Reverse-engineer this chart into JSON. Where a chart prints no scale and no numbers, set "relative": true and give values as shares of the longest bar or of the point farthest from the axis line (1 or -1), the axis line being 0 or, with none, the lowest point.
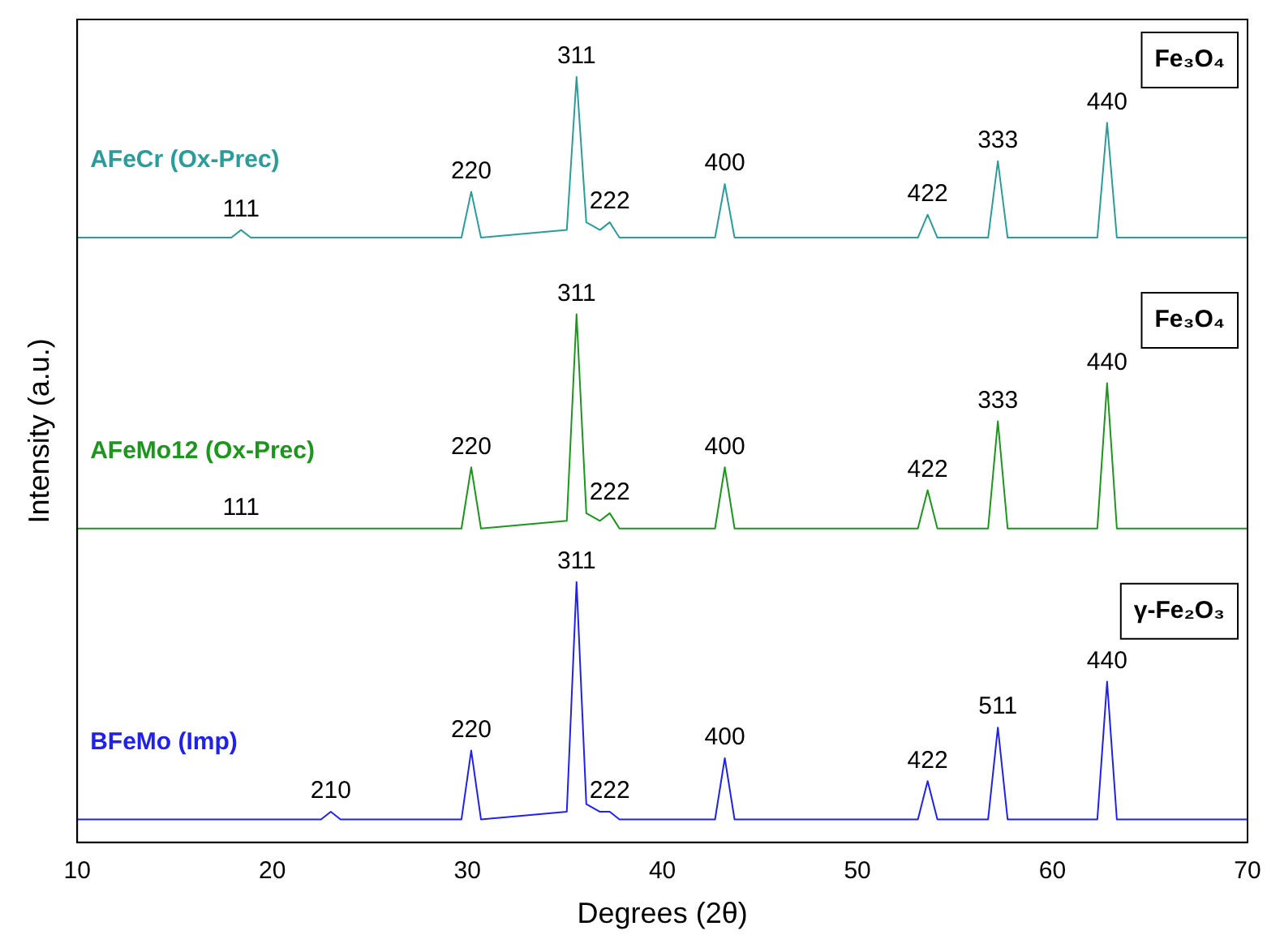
{
  "chart_data": {
    "type": "line",
    "relative": true,
    "xlabel": "Degrees (2θ)",
    "ylabel": "Intensity (a.u.)",
    "xlim": [
      10,
      70
    ],
    "xticks": [
      10,
      20,
      30,
      40,
      50,
      60,
      70
    ],
    "grid": false,
    "legend": false,
    "marker": "none",
    "line_style": "solid",
    "x": [
      10,
      17.9,
      18.4,
      18.9,
      22.5,
      23.0,
      23.5,
      29.7,
      30.2,
      30.7,
      35.1,
      35.6,
      36.1,
      36.8,
      37.3,
      37.8,
      42.7,
      43.2,
      43.7,
      53.1,
      53.6,
      54.1,
      56.7,
      57.2,
      57.7,
      62.3,
      62.8,
      63.3,
      70
    ],
    "series": [
      {
        "name": "AFeCr (Ox-Prec)",
        "color": "#2a9d9a",
        "values": [
          0.79,
          0.79,
          0.8,
          0.79,
          0.79,
          0.79,
          0.79,
          0.79,
          0.85,
          0.79,
          0.8,
          1.0,
          0.81,
          0.8,
          0.81,
          0.79,
          0.79,
          0.86,
          0.79,
          0.79,
          0.82,
          0.79,
          0.79,
          0.89,
          0.79,
          0.79,
          0.94,
          0.79,
          0.79
        ]
      },
      {
        "name": "AFeMo12 (Ox-Prec)",
        "color": "#1c961c",
        "values": [
          0.41,
          0.41,
          0.41,
          0.41,
          0.41,
          0.41,
          0.41,
          0.41,
          0.49,
          0.41,
          0.42,
          0.69,
          0.43,
          0.42,
          0.43,
          0.41,
          0.41,
          0.49,
          0.41,
          0.41,
          0.46,
          0.41,
          0.41,
          0.55,
          0.41,
          0.41,
          0.6,
          0.41,
          0.41
        ]
      },
      {
        "name": "BFeMo (Imp)",
        "color": "#2020f0",
        "values": [
          0.03,
          0.03,
          0.03,
          0.03,
          0.03,
          0.04,
          0.03,
          0.03,
          0.12,
          0.03,
          0.04,
          0.34,
          0.05,
          0.04,
          0.04,
          0.03,
          0.03,
          0.11,
          0.03,
          0.03,
          0.08,
          0.03,
          0.03,
          0.15,
          0.03,
          0.03,
          0.21,
          0.03,
          0.03
        ]
      }
    ],
    "annotations": [
      "Fe₃O₄",
      "Fe₃O₄",
      "γ-Fe₂O₃",
      {
        "text": "111",
        "x": 18.4,
        "y": 0.8
      },
      {
        "text": "220",
        "x": 30.2,
        "y": 0.85
      },
      {
        "text": "311",
        "x": 35.6,
        "y": 1.0
      },
      {
        "text": "222",
        "x": 37.3,
        "y": 0.81
      },
      {
        "text": "400",
        "x": 43.2,
        "y": 0.86
      },
      {
        "text": "422",
        "x": 53.6,
        "y": 0.82
      },
      {
        "text": "333",
        "x": 57.2,
        "y": 0.89
      },
      {
        "text": "440",
        "x": 62.8,
        "y": 0.94
      },
      {
        "text": "111",
        "x": 18.4,
        "y": 0.41
      },
      {
        "text": "220",
        "x": 30.2,
        "y": 0.49
      },
      {
        "text": "311",
        "x": 35.6,
        "y": 0.69
      },
      {
        "text": "222",
        "x": 37.3,
        "y": 0.43
      },
      {
        "text": "400",
        "x": 43.2,
        "y": 0.49
      },
      {
        "text": "422",
        "x": 53.6,
        "y": 0.46
      },
      {
        "text": "333",
        "x": 57.2,
        "y": 0.55
      },
      {
        "text": "440",
        "x": 62.8,
        "y": 0.6
      },
      {
        "text": "210",
        "x": 23.0,
        "y": 0.04
      },
      {
        "text": "220",
        "x": 30.2,
        "y": 0.12
      },
      {
        "text": "311",
        "x": 35.6,
        "y": 0.34
      },
      {
        "text": "222",
        "x": 37.3,
        "y": 0.04
      },
      {
        "text": "400",
        "x": 43.2,
        "y": 0.11
      },
      {
        "text": "422",
        "x": 53.6,
        "y": 0.08
      },
      {
        "text": "511",
        "x": 57.2,
        "y": 0.15
      },
      {
        "text": "440",
        "x": 62.8,
        "y": 0.21
      }
    ]
  }
}
